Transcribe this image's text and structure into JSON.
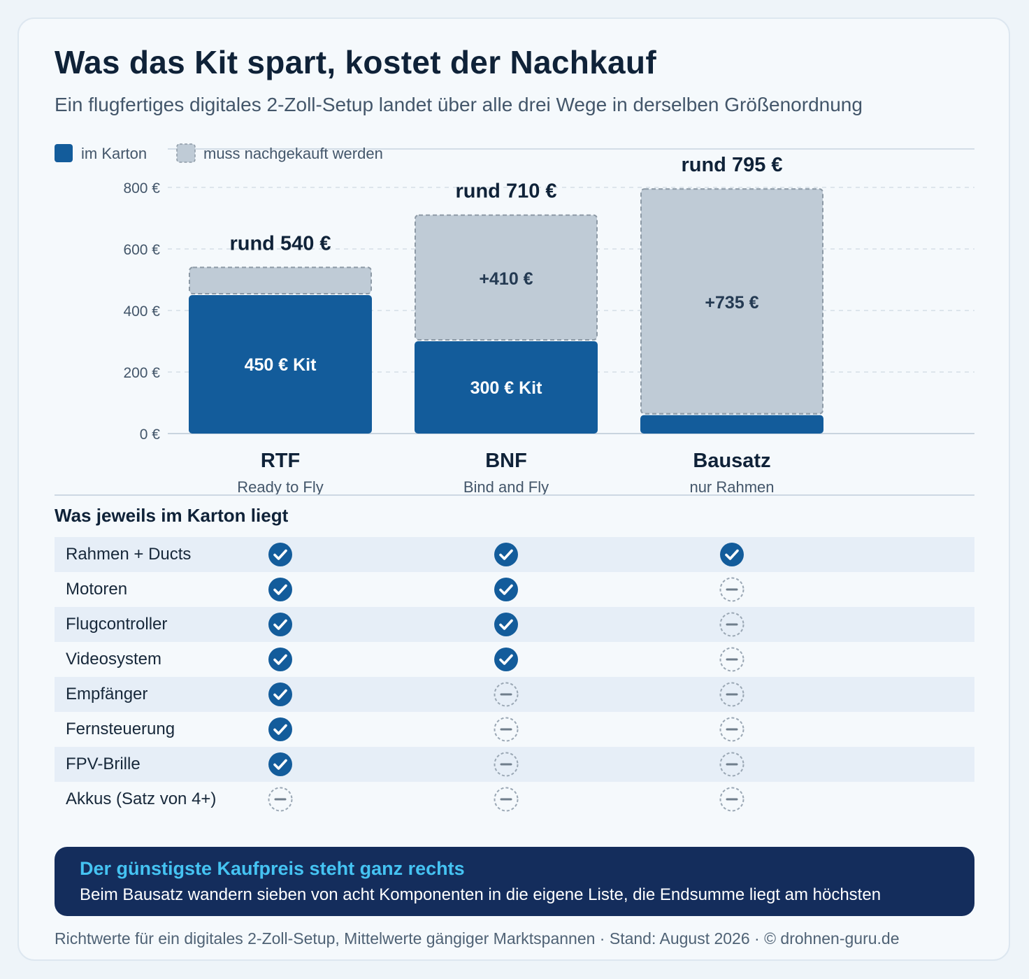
{
  "header": {
    "title": "Was das Kit spart, kostet der Nachkauf",
    "subtitle": "Ein flugfertiges digitales 2-Zoll-Setup landet über alle drei Wege in derselben Größenordnung"
  },
  "colors": {
    "kit": "#135c9b",
    "extra": "#bfcbd6",
    "extra_border": "#8d9aa6",
    "grid": "#cfd9e3",
    "text_dark": "#0f2238",
    "text_mid": "#43566a",
    "callout_bg": "#142d5c",
    "callout_accent": "#45c3f2"
  },
  "chart_data": {
    "type": "bar",
    "stacked": true,
    "categories": [
      "RTF",
      "BNF",
      "Bausatz"
    ],
    "category_sublabels": [
      "Ready to Fly",
      "Bind and Fly",
      "nur Rahmen"
    ],
    "series": [
      {
        "name": "im Karton",
        "values": [
          450,
          300,
          60
        ],
        "style": "solid",
        "labels": [
          "450 € Kit",
          "300 € Kit",
          ""
        ]
      },
      {
        "name": "muss nachgekauft werden",
        "values": [
          90,
          410,
          735
        ],
        "style": "dashed",
        "labels": [
          "",
          "+410 €",
          "+735 €"
        ]
      }
    ],
    "totals": [
      540,
      710,
      795
    ],
    "total_labels": [
      "rund 540 €",
      "rund 710 €",
      "rund 795 €"
    ],
    "yticks": [
      0,
      200,
      400,
      600,
      800
    ],
    "ytick_labels": [
      "0 €",
      "200 €",
      "400 €",
      "600 €",
      "800 €"
    ],
    "ylim": [
      0,
      800
    ],
    "grid": true,
    "legend_position": "top-left"
  },
  "table": {
    "title": "Was jeweils im Karton liegt",
    "columns": [
      "RTF",
      "BNF",
      "Bausatz"
    ],
    "rows": [
      {
        "label": "Rahmen + Ducts",
        "included": [
          true,
          true,
          true
        ]
      },
      {
        "label": "Motoren",
        "included": [
          true,
          true,
          false
        ]
      },
      {
        "label": "Flugcontroller",
        "included": [
          true,
          true,
          false
        ]
      },
      {
        "label": "Videosystem",
        "included": [
          true,
          true,
          false
        ]
      },
      {
        "label": "Empfänger",
        "included": [
          true,
          false,
          false
        ]
      },
      {
        "label": "Fernsteuerung",
        "included": [
          true,
          false,
          false
        ]
      },
      {
        "label": "FPV-Brille",
        "included": [
          true,
          false,
          false
        ]
      },
      {
        "label": "Akkus (Satz von 4+)",
        "included": [
          false,
          false,
          false
        ]
      }
    ],
    "icons": {
      "included": "check-circle-icon",
      "missing": "dash-circle-icon"
    }
  },
  "callout": {
    "heading": "Der günstigste Kaufpreis steht ganz rechts",
    "text": "Beim Bausatz wandern sieben von acht Komponenten in die eigene Liste, die Endsumme liegt am höchsten"
  },
  "footer": "Richtwerte für ein digitales 2-Zoll-Setup, Mittelwerte gängiger Marktspannen · Stand: August 2026 · © drohnen-guru.de"
}
